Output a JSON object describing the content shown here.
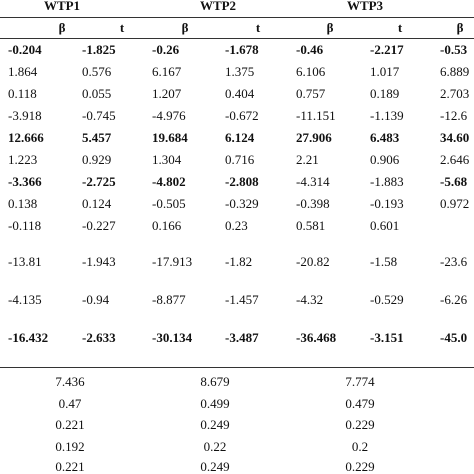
{
  "table": {
    "groups": [
      "WTP1",
      "WTP2",
      "WTP3"
    ],
    "subheaders": [
      "β",
      "t",
      "β",
      "t",
      "β",
      "t",
      "β"
    ],
    "rows": [
      {
        "cells": [
          "-0.204",
          "-1.825",
          "-0.26",
          "-1.678",
          "-0.46",
          "-2.217",
          "-0.53"
        ],
        "bold": [
          true,
          true,
          true,
          true,
          true,
          true,
          true
        ]
      },
      {
        "cells": [
          "1.864",
          "0.576",
          "6.167",
          "1.375",
          "6.106",
          "1.017",
          "6.889"
        ],
        "bold": [
          false,
          false,
          false,
          false,
          false,
          false,
          false
        ]
      },
      {
        "cells": [
          "0.118",
          "0.055",
          "1.207",
          "0.404",
          "0.757",
          "0.189",
          "2.703"
        ],
        "bold": [
          false,
          false,
          false,
          false,
          false,
          false,
          false
        ]
      },
      {
        "cells": [
          "-3.918",
          "-0.745",
          "-4.976",
          "-0.672",
          "-11.151",
          "-1.139",
          "-12.6"
        ],
        "bold": [
          false,
          false,
          false,
          false,
          false,
          false,
          false
        ]
      },
      {
        "cells": [
          "12.666",
          "5.457",
          "19.684",
          "6.124",
          "27.906",
          "6.483",
          "34.60"
        ],
        "bold": [
          true,
          true,
          true,
          true,
          true,
          true,
          true
        ]
      },
      {
        "cells": [
          "1.223",
          "0.929",
          "1.304",
          "0.716",
          "2.21",
          "0.906",
          "2.646"
        ],
        "bold": [
          false,
          false,
          false,
          false,
          false,
          false,
          false
        ]
      },
      {
        "cells": [
          "-3.366",
          "-2.725",
          "-4.802",
          "-2.808",
          "-4.314",
          "-1.883",
          "-5.68"
        ],
        "bold": [
          true,
          true,
          true,
          true,
          false,
          false,
          true
        ]
      },
      {
        "cells": [
          "0.138",
          "0.124",
          "-0.505",
          "-0.329",
          "-0.398",
          "-0.193",
          "0.972"
        ],
        "bold": [
          false,
          false,
          false,
          false,
          false,
          false,
          false
        ]
      },
      {
        "cells": [
          "-0.118",
          "-0.227",
          "0.166",
          "0.23",
          "0.581",
          "0.601"
        ],
        "bold": [
          false,
          false,
          false,
          false,
          false,
          false
        ]
      },
      {
        "cells": [
          "-13.81",
          "-1.943",
          "-17.913",
          "-1.82",
          "-20.82",
          "-1.58",
          "-23.6"
        ],
        "bold": [
          false,
          false,
          false,
          false,
          false,
          false,
          false
        ]
      },
      {
        "cells": [
          "-4.135",
          "-0.94",
          "-8.877",
          "-1.457",
          "-4.32",
          "-0.529",
          "-6.26"
        ],
        "bold": [
          false,
          false,
          false,
          false,
          false,
          false,
          false
        ]
      },
      {
        "cells": [
          "-16.432",
          "-2.633",
          "-30.134",
          "-3.487",
          "-36.468",
          "-3.151",
          "-45.0"
        ],
        "bold": [
          true,
          true,
          true,
          true,
          true,
          true,
          true
        ]
      }
    ],
    "stats": [
      [
        "7.436",
        "8.679",
        "7.774"
      ],
      [
        "0.47",
        "0.499",
        "0.479"
      ],
      [
        "0.221",
        "0.249",
        "0.229"
      ],
      [
        "0.192",
        "0.22",
        "0.2"
      ],
      [
        "0.221",
        "0.249",
        "0.229"
      ]
    ]
  }
}
